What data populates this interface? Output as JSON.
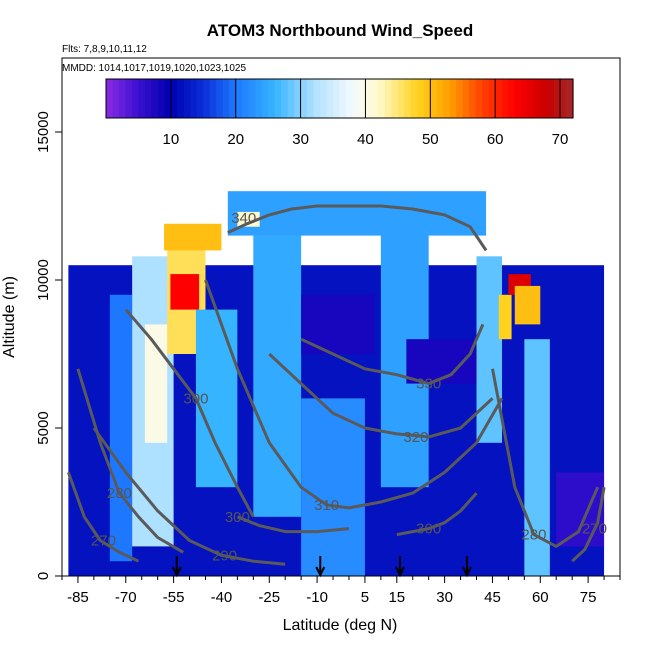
{
  "chart_data": {
    "type": "heatmap",
    "title": "ATOM3 Northbound Wind_Speed",
    "subtitle_flights": "Flts: 7,8,9,10,11,12",
    "subtitle_dates": "MMDD: 1014,1017,1019,1020,1023,1025",
    "xlabel": "Latitude (deg N)",
    "ylabel": "Altitude (m)",
    "xlim": [
      -90,
      85
    ],
    "ylim": [
      0,
      17500
    ],
    "x_ticks": [
      -85,
      -70,
      -55,
      -40,
      -25,
      -10,
      5,
      15,
      30,
      45,
      60,
      75
    ],
    "x_tick_labels": [
      "-85",
      "-70",
      "-55",
      "-40",
      "-25",
      "-10",
      "5",
      "15",
      "30",
      "45",
      "60",
      "75"
    ],
    "y_ticks": [
      0,
      5000,
      10000,
      15000
    ],
    "y_tick_labels": [
      "0",
      "5000",
      "10000",
      "15000"
    ],
    "colorbar": {
      "min": 0,
      "max": 72,
      "ticks": [
        10,
        20,
        30,
        40,
        50,
        60,
        70
      ],
      "tick_labels": [
        "10",
        "20",
        "30",
        "40",
        "50",
        "60",
        "70"
      ],
      "colors": [
        {
          "value": 0,
          "color": "#8a2be2"
        },
        {
          "value": 5,
          "color": "#3a10d0"
        },
        {
          "value": 10,
          "color": "#0000b0"
        },
        {
          "value": 15,
          "color": "#0a2ed8"
        },
        {
          "value": 20,
          "color": "#1e78ff"
        },
        {
          "value": 26,
          "color": "#36b4ff"
        },
        {
          "value": 32,
          "color": "#aee0ff"
        },
        {
          "value": 38,
          "color": "#f4faff"
        },
        {
          "value": 42,
          "color": "#fffacd"
        },
        {
          "value": 48,
          "color": "#ffd21e"
        },
        {
          "value": 53,
          "color": "#ffa000"
        },
        {
          "value": 58,
          "color": "#ff4000"
        },
        {
          "value": 63,
          "color": "#ff0000"
        },
        {
          "value": 68,
          "color": "#c80000"
        },
        {
          "value": 72,
          "color": "#a52a2a"
        }
      ]
    },
    "wind_speed_regions": [
      {
        "lat": [
          -88,
          80
        ],
        "alt": [
          0,
          10500
        ],
        "value": 12
      },
      {
        "lat": [
          -75,
          -68
        ],
        "alt": [
          500,
          9500
        ],
        "value": 20
      },
      {
        "lat": [
          -68,
          -55
        ],
        "alt": [
          1000,
          10800
        ],
        "value": 32
      },
      {
        "lat": [
          -64,
          -57
        ],
        "alt": [
          4500,
          8500
        ],
        "value": 40
      },
      {
        "lat": [
          -57,
          -45
        ],
        "alt": [
          7500,
          11800
        ],
        "value": 46
      },
      {
        "lat": [
          -56,
          -47
        ],
        "alt": [
          9000,
          10200
        ],
        "value": 63
      },
      {
        "lat": [
          -58,
          -40
        ],
        "alt": [
          11000,
          11900
        ],
        "value": 50
      },
      {
        "lat": [
          -48,
          -35
        ],
        "alt": [
          3000,
          9000
        ],
        "value": 26
      },
      {
        "lat": [
          -30,
          -15
        ],
        "alt": [
          2000,
          12500
        ],
        "value": 25
      },
      {
        "lat": [
          -15,
          5
        ],
        "alt": [
          0,
          6000
        ],
        "value": 22
      },
      {
        "lat": [
          10,
          25
        ],
        "alt": [
          3000,
          12000
        ],
        "value": 24
      },
      {
        "lat": [
          -38,
          43
        ],
        "alt": [
          11500,
          13000
        ],
        "value": 24
      },
      {
        "lat": [
          -35,
          -28
        ],
        "alt": [
          11800,
          12300
        ],
        "value": 42
      },
      {
        "lat": [
          40,
          48
        ],
        "alt": [
          4500,
          10800
        ],
        "value": 28
      },
      {
        "lat": [
          47,
          51
        ],
        "alt": [
          8000,
          9500
        ],
        "value": 48
      },
      {
        "lat": [
          50,
          57
        ],
        "alt": [
          9500,
          10200
        ],
        "value": 66
      },
      {
        "lat": [
          52,
          60
        ],
        "alt": [
          8500,
          9800
        ],
        "value": 50
      },
      {
        "lat": [
          55,
          63
        ],
        "alt": [
          0,
          8000
        ],
        "value": 28
      },
      {
        "lat": [
          -15,
          8
        ],
        "alt": [
          7500,
          9500
        ],
        "value": 8
      },
      {
        "lat": [
          18,
          40
        ],
        "alt": [
          6500,
          8000
        ],
        "value": 8
      },
      {
        "lat": [
          65,
          80
        ],
        "alt": [
          1000,
          3500
        ],
        "value": 6
      }
    ],
    "theta_contours": [
      {
        "label": "340",
        "label_lat": -33,
        "label_alt": 12100,
        "lat": [
          -38,
          -32,
          -25,
          -18,
          -10,
          0,
          10,
          20,
          30,
          38,
          43
        ],
        "alt": [
          11600,
          11900,
          12200,
          12400,
          12500,
          12500,
          12500,
          12400,
          12200,
          11800,
          11000
        ]
      },
      {
        "label": "330",
        "label_lat": 25,
        "label_alt": 6500,
        "lat": [
          -15,
          -5,
          5,
          15,
          25,
          32,
          38,
          42
        ],
        "alt": [
          8000,
          7500,
          7000,
          6800,
          6500,
          6800,
          7500,
          8500
        ]
      },
      {
        "label": "320",
        "label_lat": 21,
        "label_alt": 4700,
        "lat": [
          -25,
          -15,
          -5,
          5,
          15,
          25,
          35,
          45
        ],
        "alt": [
          7500,
          6500,
          5500,
          5000,
          4800,
          4700,
          5000,
          6000
        ]
      },
      {
        "label": "310",
        "label_lat": -7,
        "label_alt": 2400,
        "lat": [
          -45,
          -35,
          -25,
          -15,
          -7,
          0,
          10,
          20,
          30,
          40,
          48
        ],
        "alt": [
          10000,
          7000,
          4500,
          3000,
          2400,
          2300,
          2500,
          2800,
          3500,
          4500,
          6000
        ]
      },
      {
        "label": "300",
        "label_lat": -48,
        "label_alt": 6000,
        "lat": [
          -70,
          -62,
          -55,
          -48,
          -42,
          -35,
          -30
        ],
        "alt": [
          9000,
          8000,
          7000,
          6000,
          4500,
          3000,
          2000
        ]
      },
      {
        "label": "300",
        "label_lat": -35,
        "label_alt": 2000,
        "lat": [
          -35,
          -28,
          -20,
          -10,
          0
        ],
        "alt": [
          2000,
          1700,
          1500,
          1500,
          1600
        ]
      },
      {
        "label": "300",
        "label_lat": 25,
        "label_alt": 1600,
        "lat": [
          15,
          20,
          25,
          30,
          35,
          40
        ],
        "alt": [
          1400,
          1500,
          1600,
          1800,
          2200,
          2800
        ]
      },
      {
        "label": "290",
        "label_lat": -39,
        "label_alt": 700,
        "lat": [
          -80,
          -70,
          -60,
          -50,
          -40,
          -30,
          -20
        ],
        "alt": [
          5000,
          3500,
          2200,
          1200,
          700,
          500,
          400
        ]
      },
      {
        "label": "280",
        "label_lat": -72,
        "label_alt": 2800,
        "lat": [
          -85,
          -78,
          -72,
          -66,
          -60,
          -52
        ],
        "alt": [
          7000,
          4500,
          2800,
          2000,
          1300,
          800
        ]
      },
      {
        "label": "280",
        "label_lat": 58,
        "label_alt": 1400,
        "lat": [
          45,
          52,
          58,
          65,
          72,
          78
        ],
        "alt": [
          7000,
          3000,
          1400,
          1000,
          1500,
          3000
        ]
      },
      {
        "label": "270",
        "label_lat": -77,
        "label_alt": 1200,
        "lat": [
          -88,
          -83,
          -78,
          -72,
          -66
        ],
        "alt": [
          3500,
          2000,
          1200,
          800,
          500
        ]
      },
      {
        "label": "270",
        "label_lat": 77,
        "label_alt": 1600,
        "lat": [
          70,
          74,
          78,
          80
        ],
        "alt": [
          500,
          900,
          1800,
          3000
        ]
      }
    ],
    "flight_markers_lat": [
      -54,
      -9,
      16,
      37
    ]
  }
}
